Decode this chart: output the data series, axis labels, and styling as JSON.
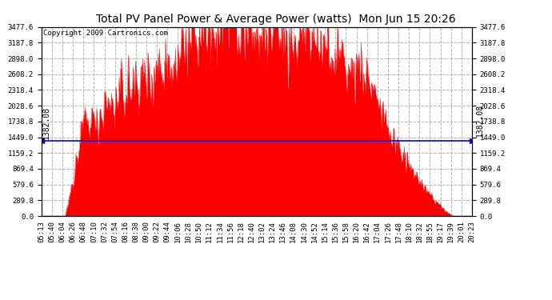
{
  "title": "Total PV Panel Power & Average Power (watts)  Mon Jun 15 20:26",
  "copyright": "Copyright 2009 Cartronics.com",
  "avg_power": 1382.08,
  "y_max": 3477.6,
  "y_min": 0.0,
  "y_ticks": [
    0.0,
    289.8,
    579.6,
    869.4,
    1159.2,
    1449.0,
    1738.8,
    2028.6,
    2318.4,
    2608.2,
    2898.0,
    3187.8,
    3477.6
  ],
  "x_labels": [
    "05:13",
    "05:40",
    "06:04",
    "06:26",
    "06:48",
    "07:10",
    "07:32",
    "07:54",
    "08:16",
    "08:38",
    "09:00",
    "09:22",
    "09:44",
    "10:06",
    "10:28",
    "10:50",
    "11:12",
    "11:34",
    "11:56",
    "12:18",
    "12:40",
    "13:02",
    "13:24",
    "13:46",
    "14:08",
    "14:30",
    "14:52",
    "15:14",
    "15:36",
    "15:58",
    "16:20",
    "16:42",
    "17:04",
    "17:26",
    "17:48",
    "18:10",
    "18:32",
    "18:55",
    "19:17",
    "19:39",
    "20:01",
    "20:23"
  ],
  "fill_color": "#ff0000",
  "avg_line_color": "#0000ff",
  "grid_color": "#aaaaaa",
  "bg_color": "#ffffff",
  "border_color": "#000000",
  "title_fontsize": 10,
  "copyright_fontsize": 6.5,
  "tick_fontsize": 6.5,
  "avg_label_fontsize": 7
}
